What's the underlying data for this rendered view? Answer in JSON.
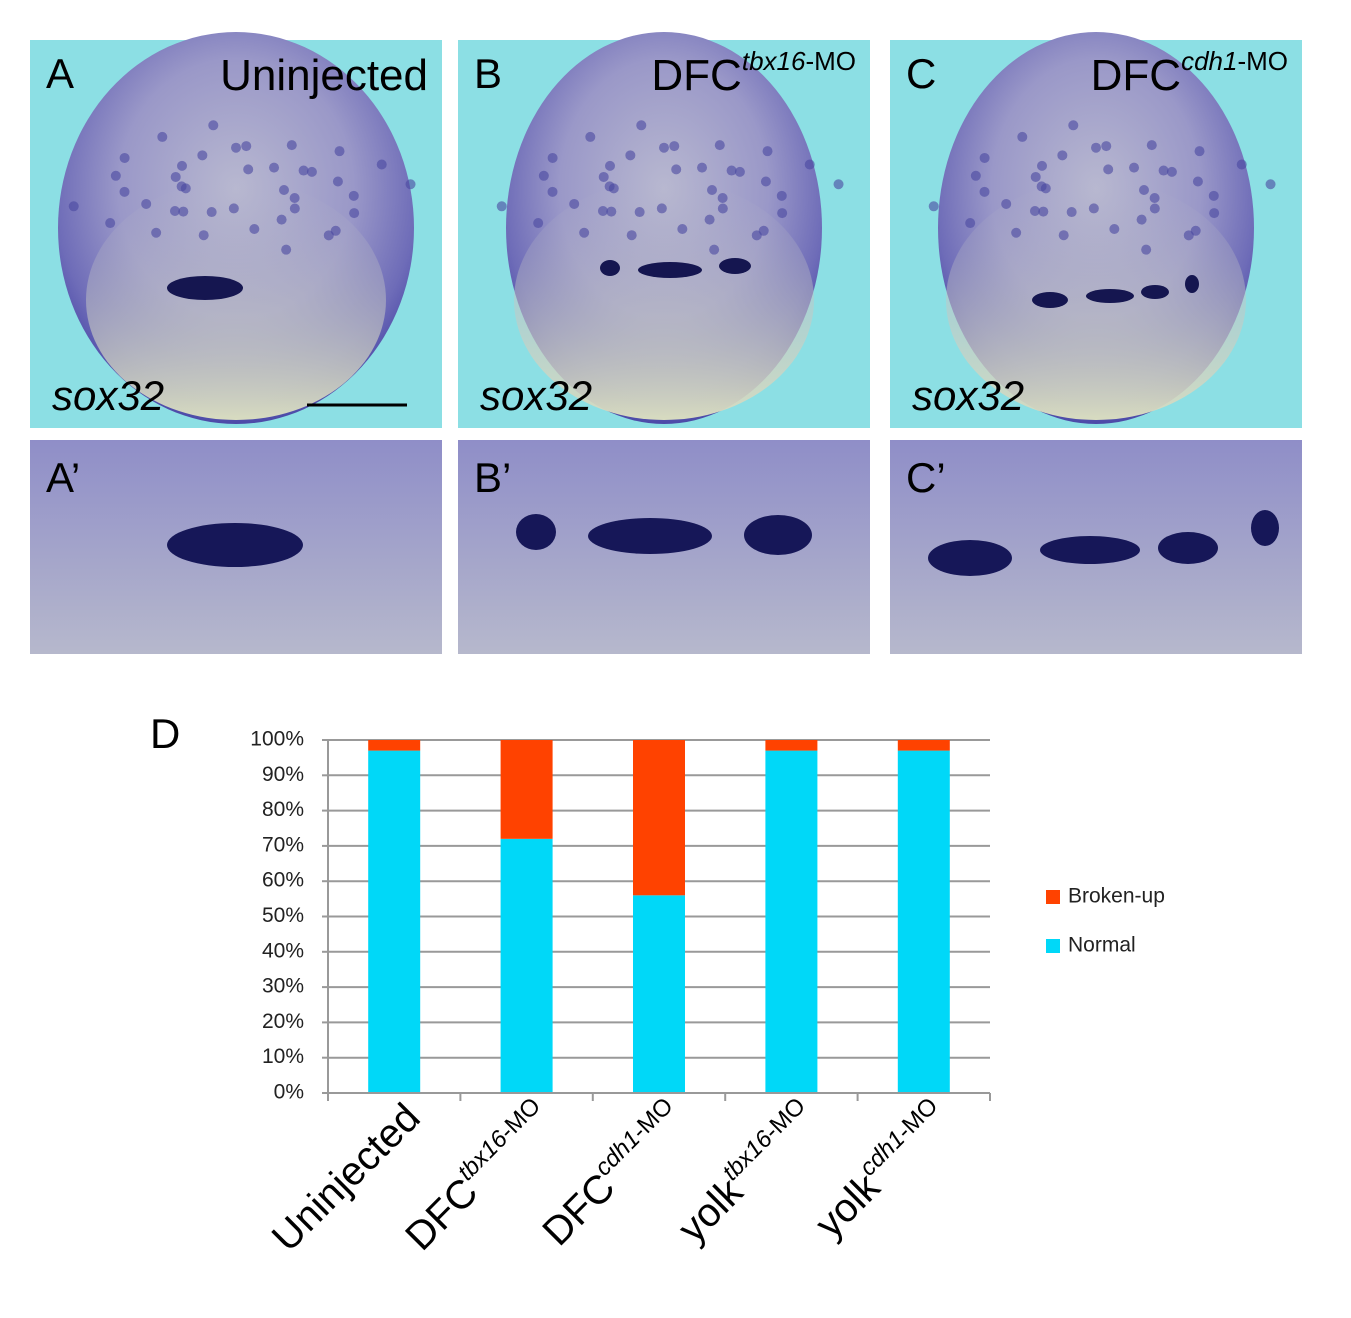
{
  "panels": [
    {
      "letter": "A",
      "title": "Uninjected",
      "stain": "sox32",
      "zoom_letter": "A’"
    },
    {
      "letter": "B",
      "title": "DFC",
      "title_gene": "tbx16",
      "title_suffix": "-MO",
      "stain": "sox32",
      "zoom_letter": "B’"
    },
    {
      "letter": "C",
      "title": "DFC",
      "title_gene": "cdh1",
      "title_suffix": "-MO",
      "stain": "sox32",
      "zoom_letter": "C’"
    }
  ],
  "chart_letter": "D",
  "chart_data": {
    "type": "stacked_bar",
    "categories": [
      {
        "base": "Uninjected"
      },
      {
        "base": "DFC",
        "gene": "tbx16",
        "suffix": "-MO"
      },
      {
        "base": "DFC",
        "gene": "cdh1",
        "suffix": "-MO"
      },
      {
        "base": "yolk",
        "gene": "tbx16",
        "suffix": "-MO"
      },
      {
        "base": "yolk",
        "gene": "cdh1",
        "suffix": "-MO"
      }
    ],
    "series": [
      {
        "name": "Normal",
        "color": "#00d8f8",
        "values": [
          97,
          72,
          56,
          97,
          97
        ]
      },
      {
        "name": "Broken-up",
        "color": "#ff4200",
        "values": [
          3,
          28,
          44,
          3,
          3
        ]
      }
    ],
    "ylim": [
      0,
      100
    ],
    "yticks": [
      {
        "value": 0,
        "label": "0%"
      },
      {
        "value": 10,
        "label": "10%"
      },
      {
        "value": 20,
        "label": "20%"
      },
      {
        "value": 30,
        "label": "30%"
      },
      {
        "value": 40,
        "label": "40%"
      },
      {
        "value": 50,
        "label": "50%"
      },
      {
        "value": 60,
        "label": "60%"
      },
      {
        "value": 70,
        "label": "70%"
      },
      {
        "value": 80,
        "label": "80%"
      },
      {
        "value": 90,
        "label": "90%"
      },
      {
        "value": 100,
        "label": "100%"
      }
    ],
    "grid": true,
    "legend": "right"
  }
}
